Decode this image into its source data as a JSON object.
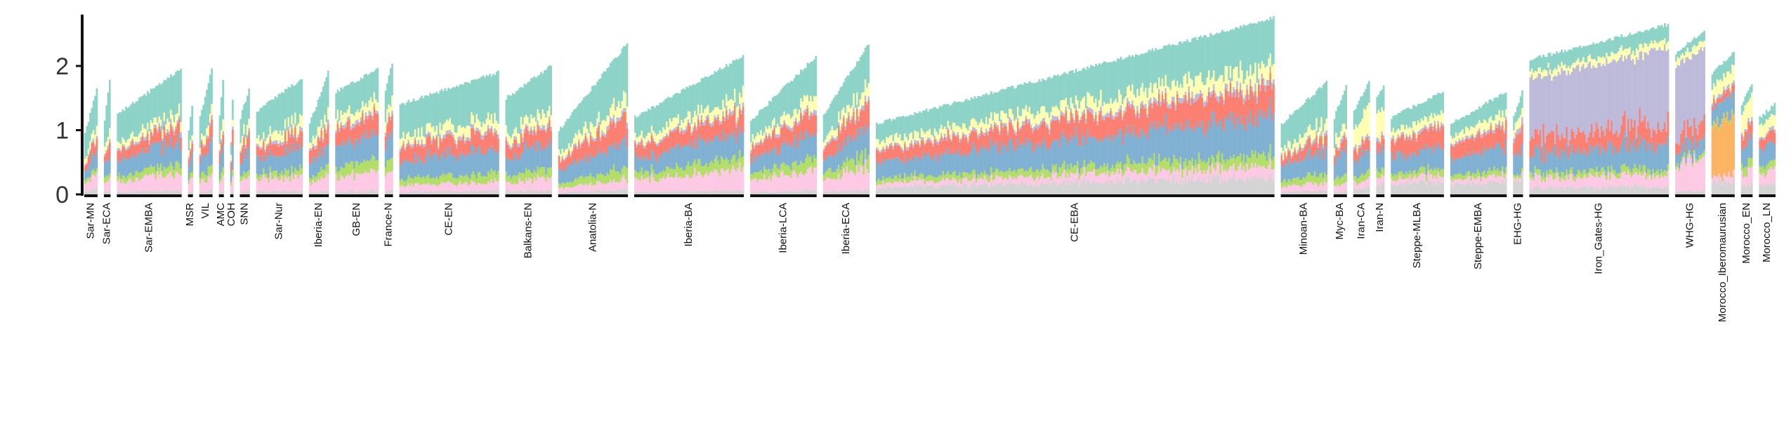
{
  "chart_data": {
    "type": "bar",
    "stacked": true,
    "title": "",
    "xlabel": "",
    "ylabel": "",
    "ylim": [
      0,
      2.8
    ],
    "y_ticks": [
      "0",
      "1",
      "2"
    ],
    "grid": false,
    "legend": "none",
    "components": [
      {
        "color": "#d4d4d4",
        "note": "grey"
      },
      {
        "color": "#fdc9e4",
        "note": "pink"
      },
      {
        "color": "#fdb462",
        "note": "orange"
      },
      {
        "color": "#b3de69",
        "note": "green"
      },
      {
        "color": "#80b1d3",
        "note": "blue"
      },
      {
        "color": "#fb8072",
        "note": "red"
      },
      {
        "color": "#bebada",
        "note": "purple"
      },
      {
        "color": "#ffffb3",
        "note": "yellow"
      },
      {
        "color": "#8dd3c7",
        "note": "teal"
      }
    ],
    "groups": [
      {
        "label": "Sar-MN",
        "n": 8,
        "top_min": 0.95,
        "top_max": 1.65,
        "profile": [
          0.1,
          0.22,
          0.0,
          0.1,
          0.28,
          0.2,
          0.05,
          0.15,
          0.7
        ]
      },
      {
        "label": "Sar-ECA",
        "n": 4,
        "top_min": 1.15,
        "top_max": 1.8,
        "profile": [
          0.05,
          0.22,
          0.0,
          0.1,
          0.3,
          0.2,
          0.05,
          0.15,
          0.6
        ]
      },
      {
        "label": "Sar-EMBA",
        "n": 39,
        "top_min": 1.25,
        "top_max": 1.95,
        "profile": [
          0.05,
          0.22,
          0.0,
          0.12,
          0.3,
          0.18,
          0.05,
          0.12,
          0.55
        ]
      },
      {
        "label": "MSR",
        "n": 3,
        "top_min": 1.0,
        "top_max": 1.4,
        "profile": [
          0.05,
          0.22,
          0.0,
          0.1,
          0.3,
          0.2,
          0.05,
          0.12,
          0.5
        ]
      },
      {
        "label": "VIL",
        "n": 8,
        "top_min": 1.2,
        "top_max": 1.95,
        "profile": [
          0.05,
          0.2,
          0.0,
          0.12,
          0.3,
          0.2,
          0.05,
          0.15,
          0.6
        ]
      },
      {
        "label": "AMC",
        "n": 3,
        "top_min": 1.2,
        "top_max": 1.8,
        "profile": [
          0.05,
          0.2,
          0.0,
          0.12,
          0.3,
          0.22,
          0.05,
          0.15,
          0.55
        ]
      },
      {
        "label": "COH",
        "n": 2,
        "top_min": 0.8,
        "top_max": 1.45,
        "profile": [
          0.05,
          0.2,
          0.0,
          0.1,
          0.28,
          0.2,
          0.05,
          0.12,
          0.4
        ]
      },
      {
        "label": "SNN",
        "n": 6,
        "top_min": 1.2,
        "top_max": 1.65,
        "profile": [
          0.05,
          0.2,
          0.0,
          0.1,
          0.3,
          0.22,
          0.05,
          0.15,
          0.5
        ]
      },
      {
        "label": "Sar-Nur",
        "n": 28,
        "top_min": 1.3,
        "top_max": 1.8,
        "profile": [
          0.05,
          0.22,
          0.0,
          0.1,
          0.3,
          0.2,
          0.05,
          0.15,
          0.55
        ]
      },
      {
        "label": "Iberia-EN",
        "n": 12,
        "top_min": 1.1,
        "top_max": 1.9,
        "profile": [
          0.05,
          0.22,
          0.0,
          0.12,
          0.3,
          0.22,
          0.05,
          0.15,
          0.55
        ]
      },
      {
        "label": "GB-EN",
        "n": 26,
        "top_min": 1.6,
        "top_max": 1.95,
        "profile": [
          0.05,
          0.22,
          0.0,
          0.15,
          0.32,
          0.25,
          0.05,
          0.15,
          0.4
        ]
      },
      {
        "label": "France-N",
        "n": 5,
        "top_min": 1.6,
        "top_max": 2.05,
        "profile": [
          0.05,
          0.22,
          0.0,
          0.15,
          0.3,
          0.25,
          0.05,
          0.15,
          0.45
        ]
      },
      {
        "label": "CE-EN",
        "n": 60,
        "top_min": 1.4,
        "top_max": 1.9,
        "profile": [
          0.05,
          0.12,
          0.0,
          0.12,
          0.32,
          0.25,
          0.05,
          0.15,
          0.6
        ]
      },
      {
        "label": "Balkans-EN",
        "n": 28,
        "top_min": 1.5,
        "top_max": 2.0,
        "profile": [
          0.05,
          0.15,
          0.0,
          0.12,
          0.3,
          0.22,
          0.05,
          0.15,
          0.55
        ]
      },
      {
        "label": "Anatolia-N",
        "n": 42,
        "top_min": 1.0,
        "top_max": 2.35,
        "profile": [
          0.05,
          0.1,
          0.0,
          0.12,
          0.3,
          0.25,
          0.05,
          0.15,
          0.55
        ]
      },
      {
        "label": "Iberia-BA",
        "n": 66,
        "top_min": 1.2,
        "top_max": 2.15,
        "profile": [
          0.05,
          0.25,
          0.0,
          0.15,
          0.3,
          0.25,
          0.05,
          0.15,
          0.45
        ]
      },
      {
        "label": "Iberia-LCA",
        "n": 40,
        "top_min": 1.15,
        "top_max": 2.15,
        "profile": [
          0.05,
          0.25,
          0.0,
          0.15,
          0.3,
          0.25,
          0.05,
          0.15,
          0.45
        ]
      },
      {
        "label": "Iberia-ECA",
        "n": 28,
        "top_min": 1.25,
        "top_max": 2.35,
        "profile": [
          0.05,
          0.25,
          0.0,
          0.15,
          0.3,
          0.25,
          0.05,
          0.15,
          0.45
        ]
      },
      {
        "label": "CE-EBA",
        "n": 240,
        "top_min": 1.1,
        "top_max": 2.75,
        "profile": [
          0.15,
          0.1,
          0.0,
          0.1,
          0.35,
          0.25,
          0.05,
          0.15,
          0.4
        ]
      },
      {
        "label": "Minoan-BA",
        "n": 28,
        "top_min": 1.1,
        "top_max": 1.75,
        "profile": [
          0.05,
          0.1,
          0.0,
          0.12,
          0.3,
          0.15,
          0.05,
          0.15,
          0.5
        ]
      },
      {
        "label": "Myc-BA",
        "n": 8,
        "top_min": 1.2,
        "top_max": 1.7,
        "profile": [
          0.05,
          0.1,
          0.0,
          0.12,
          0.3,
          0.15,
          0.05,
          0.15,
          0.5
        ]
      },
      {
        "label": "Iran-CA",
        "n": 10,
        "top_min": 1.3,
        "top_max": 1.75,
        "profile": [
          0.1,
          0.1,
          0.0,
          0.1,
          0.3,
          0.15,
          0.05,
          0.35,
          0.3
        ]
      },
      {
        "label": "Iran-N",
        "n": 5,
        "top_min": 1.5,
        "top_max": 1.7,
        "profile": [
          0.15,
          0.1,
          0.0,
          0.1,
          0.28,
          0.15,
          0.05,
          0.35,
          0.3
        ]
      },
      {
        "label": "Steppe-MLBA",
        "n": 32,
        "top_min": 1.2,
        "top_max": 1.6,
        "profile": [
          0.2,
          0.1,
          0.0,
          0.1,
          0.35,
          0.3,
          0.05,
          0.15,
          0.3
        ]
      },
      {
        "label": "Steppe-EMBA",
        "n": 34,
        "top_min": 1.1,
        "top_max": 1.6,
        "profile": [
          0.2,
          0.1,
          0.0,
          0.1,
          0.35,
          0.3,
          0.05,
          0.15,
          0.3
        ]
      },
      {
        "label": "EHG-HG",
        "n": 6,
        "top_min": 1.2,
        "top_max": 1.6,
        "profile": [
          0.25,
          0.05,
          0.0,
          0.05,
          0.3,
          0.3,
          0.1,
          0.15,
          0.25
        ]
      },
      {
        "label": "Iron_Gates-HG",
        "n": 84,
        "top_min": 2.1,
        "top_max": 2.65,
        "profile": [
          0.1,
          0.15,
          0.0,
          0.08,
          0.3,
          0.25,
          0.9,
          0.1,
          0.2
        ]
      },
      {
        "label": "WHG-HG",
        "n": 18,
        "top_min": 2.2,
        "top_max": 2.55,
        "profile": [
          0.05,
          0.4,
          0.0,
          0.05,
          0.2,
          0.2,
          1.0,
          0.1,
          0.1
        ]
      },
      {
        "label": "Morocco_Iberomaurusian",
        "n": 14,
        "top_min": 1.9,
        "top_max": 2.2,
        "profile": [
          0.2,
          0.1,
          0.8,
          0.05,
          0.3,
          0.1,
          0.05,
          0.25,
          0.25
        ]
      },
      {
        "label": "Morocco_EN",
        "n": 7,
        "top_min": 1.4,
        "top_max": 1.7,
        "profile": [
          0.15,
          0.2,
          0.0,
          0.15,
          0.3,
          0.2,
          0.05,
          0.35,
          0.15
        ]
      },
      {
        "label": "Morocco_LN",
        "n": 10,
        "top_min": 1.2,
        "top_max": 1.4,
        "profile": [
          0.15,
          0.2,
          0.0,
          0.12,
          0.28,
          0.18,
          0.05,
          0.2,
          0.15
        ]
      }
    ]
  }
}
